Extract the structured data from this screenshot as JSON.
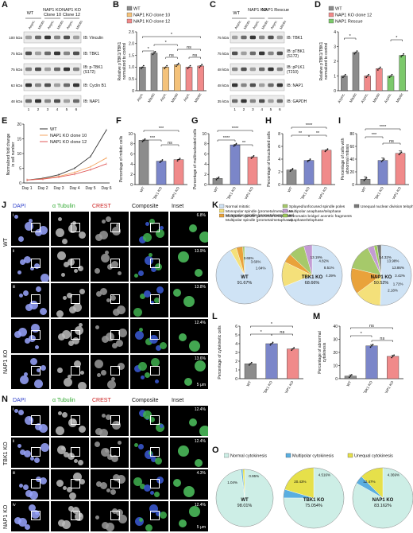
{
  "panels": {
    "A": {
      "label": "A",
      "lanes": {
        "groups": [
          "WT",
          "NAP1 KO Clone 10",
          "NAP1 KO Clone 12"
        ],
        "conditions": [
          "Async.",
          "Mitotic",
          "Async.",
          "Mitotic",
          "Async.",
          "Mitotic"
        ],
        "numbers": [
          "1",
          "2",
          "3",
          "4",
          "5",
          "6"
        ]
      },
      "blots": [
        {
          "ib": "IB: Vinculin",
          "mw": "100 kDa"
        },
        {
          "ib": "IB: TBK1",
          "mw": "75 kDa"
        },
        {
          "ib": "IB: p-TBK1 (S172)",
          "mw": "75 kDa"
        },
        {
          "ib": "IB: Cyclin B1",
          "mw": "63 kDa"
        },
        {
          "ib": "IB: NAP1",
          "mw": "48 kDa"
        }
      ]
    },
    "B": {
      "label": "B",
      "legend": [
        "WT",
        "NAP1 KO clone 10",
        "NAP1 KO clone 12"
      ],
      "colors": [
        "#8c8c8c",
        "#f4c27a",
        "#f08a8a"
      ],
      "ylabel": "Relative pTBK1/TBK1 normalized to control",
      "yticks": [
        "0",
        "0.5",
        "1.0",
        "1.5",
        "2.0",
        "2.5"
      ],
      "chart_data": {
        "type": "bar",
        "categories": [
          "Asyn.",
          "Mitotic",
          "Asyn.",
          "Mitotic",
          "Asyn.",
          "Mitotic"
        ],
        "values": [
          1.0,
          1.6,
          1.0,
          1.1,
          1.0,
          1.05
        ],
        "ylim": [
          0,
          2.5
        ],
        "sig": [
          "*",
          "*",
          "*",
          "ns",
          "ns",
          "ns"
        ]
      }
    },
    "C": {
      "label": "C",
      "lanes": {
        "groups": [
          "WT",
          "NAP1 KO",
          "NAP1 Rescue"
        ],
        "conditions": [
          "Async.",
          "Mitotic",
          "Async.",
          "Mitotic",
          "Async.",
          "Mitotic"
        ],
        "numbers": [
          "1",
          "2",
          "3",
          "4",
          "5",
          "6"
        ]
      },
      "blots": [
        {
          "ib": "IB: TBK1",
          "mw": "75 kDa"
        },
        {
          "ib": "IB: pTBK1 (S172)",
          "mw": "75 kDa"
        },
        {
          "ib": "IB: pPLK1 (T210)",
          "mw": "48 kDa"
        },
        {
          "ib": "IB: NAP1",
          "mw": "48 kDa"
        },
        {
          "ib": "IB: GAPDH",
          "mw": "35 kDa"
        }
      ]
    },
    "D": {
      "label": "D",
      "legend": [
        "WT",
        "NAP1 KO clone 12",
        "NAP1 Rescue"
      ],
      "colors": [
        "#8c8c8c",
        "#f08a8a",
        "#7cc96b"
      ],
      "ylabel": "Relative pTBK1/TBK1 normalized to control",
      "yticks": [
        "0",
        "1",
        "2",
        "3",
        "4"
      ],
      "chart_data": {
        "type": "bar",
        "categories": [
          "Async.",
          "Mitotic",
          "Async.",
          "Mitotic",
          "Async.",
          "Mitotic"
        ],
        "values": [
          1.0,
          2.6,
          1.0,
          1.5,
          1.0,
          2.4
        ],
        "ylim": [
          0,
          4
        ],
        "sig": [
          "*",
          "*"
        ]
      }
    },
    "E": {
      "label": "E",
      "ylabel": "Normalized fold change in cell number",
      "legend": [
        "WT",
        "NAP1 KO clone 10",
        "NAP1 KO clone 12"
      ],
      "colors": [
        "#333333",
        "#f4a460",
        "#e05a5a"
      ],
      "yticks": [
        "0",
        "5",
        "10",
        "15",
        "20"
      ],
      "chart_data": {
        "type": "line",
        "x": [
          "Day 1",
          "Day 2",
          "Day 3",
          "Day 4",
          "Day 5",
          "Day 6"
        ],
        "series": [
          {
            "name": "WT",
            "values": [
              1,
              1.6,
              2.8,
              5.0,
              9.0,
              18.0
            ]
          },
          {
            "name": "NAP1 KO clone 10",
            "values": [
              1,
              1.4,
              2.2,
              3.6,
              5.5,
              8.5
            ]
          },
          {
            "name": "NAP1 KO clone 12",
            "values": [
              1,
              1.3,
              2.0,
              3.0,
              4.5,
              6.5
            ]
          }
        ],
        "ylim": [
          0,
          20
        ]
      }
    },
    "F": {
      "label": "F",
      "ylabel": "Percentage of mitotic cells",
      "colors": [
        "#8c8c8c",
        "#7b86c9",
        "#f08a8a"
      ],
      "yticks": [
        "0",
        "2",
        "4",
        "6",
        "8",
        "10"
      ],
      "chart_data": {
        "type": "bar",
        "categories": [
          "WT",
          "TBK1 KO",
          "NAP1 KO"
        ],
        "values": [
          8.7,
          4.6,
          4.9
        ],
        "ylim": [
          0,
          10
        ],
        "sig": [
          "***",
          "***",
          "ns"
        ]
      }
    },
    "G": {
      "label": "G",
      "ylabel": "Percentage of multinucleated cells",
      "colors": [
        "#8c8c8c",
        "#7b86c9",
        "#f08a8a"
      ],
      "yticks": [
        "0",
        "2",
        "4",
        "6",
        "8",
        "10"
      ],
      "chart_data": {
        "type": "bar",
        "categories": [
          "WT",
          "TBK1 KO",
          "NAP1 KO"
        ],
        "values": [
          1.2,
          7.8,
          5.4
        ],
        "ylim": [
          0,
          10
        ],
        "sig": [
          "****",
          "****",
          "**"
        ]
      }
    },
    "H": {
      "label": "H",
      "ylabel": "Percentage of binucleated cells",
      "colors": [
        "#8c8c8c",
        "#7b86c9",
        "#f08a8a"
      ],
      "yticks": [
        "0",
        "2",
        "4",
        "6",
        "8"
      ],
      "chart_data": {
        "type": "bar",
        "categories": [
          "WT",
          "TBK1 KO",
          "NAP1 KO"
        ],
        "values": [
          2.3,
          3.8,
          5.4
        ],
        "ylim": [
          0,
          8
        ],
        "sig": [
          "****",
          "**",
          "**"
        ]
      }
    },
    "I": {
      "label": "I",
      "ylabel": "Percentage of cells with abnormal mitosis",
      "colors": [
        "#8c8c8c",
        "#7b86c9",
        "#f08a8a"
      ],
      "yticks": [
        "0",
        "20",
        "40",
        "60",
        "80"
      ],
      "chart_data": {
        "type": "bar",
        "categories": [
          "WT",
          "TBK1 KO",
          "NAP1 KO"
        ],
        "values": [
          8.4,
          38,
          49
        ],
        "ylim": [
          0,
          80
        ],
        "sig": [
          "****",
          "***",
          "ns"
        ]
      }
    },
    "J": {
      "label": "J",
      "columns": [
        "DAPI",
        "α Tubulin",
        "CREST",
        "Composite",
        "Inset"
      ],
      "rows": [
        "WT",
        "NAP1 KO"
      ],
      "subrows": [
        "i",
        "ii",
        "iii"
      ],
      "percents": [
        "6.8%",
        "13.9%",
        "13.8%",
        "12.4%",
        "13.6%"
      ],
      "scale": "5 μm"
    },
    "K": {
      "label": "K",
      "legend": [
        "Normal mitotic",
        "Monopolar spindle (prometa/metaphase)",
        "Multipolar spindle (prometa/metaphase)",
        "Splayed/unfocused spindle poles",
        "Multipolar anaphase/telophase",
        "Chromatin bridge/ acentric fragments anaphase/telophase",
        "Unequal nuclear division telophase"
      ],
      "colors": [
        "#cfe3f5",
        "#f4e07a",
        "#e9a23b",
        "#a6c96a",
        "#c39bd3",
        "#9ecb5a",
        "#7a7a7a"
      ],
      "chart_data": [
        {
          "type": "pie",
          "name": "WT",
          "labels": [
            "Normal mitotic",
            "Monopolar spindle",
            "Multipolar spindle",
            "Splayed/unfocused spindle poles"
          ],
          "values": [
            91.67,
            3.65,
            3.66,
            1.04
          ]
        },
        {
          "type": "pie",
          "name": "TBK1 KO",
          "labels": [
            "Normal mitotic",
            "Monopolar spindle",
            "Multipolar spindle",
            "Splayed/unfocused spindle poles",
            "Multipolar anaphase/telophase"
          ],
          "values": [
            68.66,
            13.19,
            4.82,
            8.51,
            4.39
          ]
        },
        {
          "type": "pie",
          "name": "NAP1 KO",
          "labels": [
            "Normal mitotic",
            "Monopolar spindle",
            "Multipolar spindle",
            "Splayed/unfocused spindle poles",
            "Multipolar anaphase/telophase",
            "Chromatin bridge",
            "Unequal nuclear division"
          ],
          "values": [
            50.52,
            14.32,
            13.98,
            13.86,
            3.42,
            1.72,
            2.18
          ]
        }
      ]
    },
    "L": {
      "label": "L",
      "ylabel": "Percentage of cytokinetic cells",
      "colors": [
        "#8c8c8c",
        "#7b86c9",
        "#f08a8a"
      ],
      "yticks": [
        "0",
        "1",
        "2",
        "3",
        "4",
        "5",
        "6"
      ],
      "chart_data": {
        "type": "bar",
        "categories": [
          "WT",
          "TBK1 KO",
          "NAP1 KO"
        ],
        "values": [
          1.7,
          4.0,
          3.4
        ],
        "ylim": [
          0,
          6
        ],
        "sig": [
          "*",
          "*",
          "ns"
        ]
      }
    },
    "M": {
      "label": "M",
      "ylabel": "Percentage of abnormal cytokinesis",
      "colors": [
        "#8c8c8c",
        "#7b86c9",
        "#f08a8a"
      ],
      "yticks": [
        "0",
        "10",
        "20",
        "30",
        "40"
      ],
      "chart_data": {
        "type": "bar",
        "categories": [
          "WT",
          "TBK1 KO",
          "NAP1 KO"
        ],
        "values": [
          2,
          25,
          17
        ],
        "ylim": [
          0,
          40
        ],
        "sig": [
          "*",
          "ns",
          "ns"
        ]
      }
    },
    "N": {
      "label": "N",
      "columns": [
        "DAPI",
        "α Tubulin",
        "CREST",
        "Composite",
        "Inset"
      ],
      "rows": [
        "TBK1 KO",
        "NAP1 KO"
      ],
      "subrows": [
        "i",
        "ii",
        "iii",
        "iv"
      ],
      "percents": [
        "12.4%",
        "12.4%",
        "4.3%",
        "12.4%"
      ],
      "scale": "5 μm"
    },
    "O": {
      "label": "O",
      "legend": [
        "Normal cytokinesis",
        "Multipolar cytokinesis",
        "Unequal cytokinesis"
      ],
      "colors": [
        "#cdeee6",
        "#5aaee0",
        "#e6e04a"
      ],
      "chart_data": [
        {
          "type": "pie",
          "name": "WT",
          "labels": [
            "Normal cytokinesis",
            "Multipolar cytokinesis",
            "Unequal cytokinesis"
          ],
          "values": [
            98.01,
            0.95,
            1.04
          ]
        },
        {
          "type": "pie",
          "name": "TBK1 KO",
          "labels": [
            "Normal cytokinesis",
            "Multipolar cytokinesis",
            "Unequal cytokinesis"
          ],
          "values": [
            75.054,
            4.516,
            20.43
          ]
        },
        {
          "type": "pie",
          "name": "NAP1 KO",
          "labels": [
            "Normal cytokinesis",
            "Multipolar cytokinesis",
            "Unequal cytokinesis"
          ],
          "values": [
            83.162,
            4.369,
            12.47
          ]
        }
      ]
    }
  }
}
